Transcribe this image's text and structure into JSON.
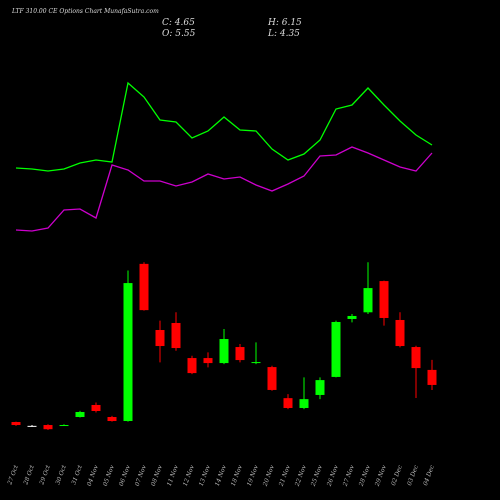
{
  "chart_data": {
    "type": "candlestick",
    "title": "LTF 310.00 CE Options Chart MunafaSutra.com",
    "close_label": "C: 4.65",
    "high_label": "H: 6.15",
    "open_label": "O: 5.55",
    "low_label": "L: 4.35",
    "categories": [
      "27 Oct",
      "28 Oct",
      "29 Oct",
      "30 Oct",
      "31 Oct",
      "04 Nov",
      "05 Nov",
      "06 Nov",
      "07 Nov",
      "08 Nov",
      "11 Nov",
      "12 Nov",
      "13 Nov",
      "14 Nov",
      "18 Nov",
      "19 Nov",
      "20 Nov",
      "21 Nov",
      "22 Nov",
      "25 Nov",
      "26 Nov",
      "27 Nov",
      "28 Nov",
      "29 Nov",
      "02 Dec",
      "03 Dec",
      "04 Dec"
    ],
    "open": [
      2.43,
      2.2,
      2.25,
      2.2,
      2.73,
      3.45,
      2.73,
      2.49,
      11.9,
      7.94,
      8.36,
      6.26,
      6.26,
      5.96,
      6.92,
      6.0,
      5.72,
      3.86,
      3.27,
      4.05,
      5.13,
      8.6,
      9.0,
      10.87,
      8.54,
      6.92,
      5.55
    ],
    "high": [
      2.45,
      2.25,
      2.3,
      2.3,
      3.1,
      3.6,
      2.8,
      11.5,
      12.0,
      8.5,
      9.0,
      6.4,
      6.6,
      8.0,
      7.1,
      7.2,
      5.8,
      4.1,
      5.1,
      5.1,
      8.5,
      8.9,
      12.0,
      10.9,
      9.0,
      7.0,
      6.15
    ],
    "low": [
      2.2,
      2.15,
      1.95,
      2.2,
      2.7,
      3.0,
      2.45,
      2.45,
      9.1,
      6.0,
      6.7,
      5.3,
      5.7,
      5.9,
      6.0,
      5.9,
      4.3,
      3.2,
      3.2,
      3.8,
      5.1,
      8.4,
      8.9,
      8.2,
      6.9,
      3.87,
      4.35
    ],
    "close": [
      2.25,
      2.2,
      2.0,
      2.25,
      3.03,
      3.09,
      2.49,
      10.75,
      9.13,
      6.98,
      6.86,
      5.36,
      5.96,
      7.4,
      6.14,
      6.02,
      4.35,
      3.27,
      3.8,
      4.94,
      8.42,
      8.78,
      10.45,
      8.66,
      6.98,
      5.66,
      4.65
    ],
    "up_color": "#00ff00",
    "down_color": "#ff0000",
    "flat_color": "#ffffff",
    "lines": [
      {
        "color": "#00ff00",
        "values": [
          9.2,
          9.1,
          8.9,
          9.1,
          9.7,
          10,
          9.8,
          17.7,
          16.3,
          14,
          13.8,
          12.2,
          12.9,
          14.3,
          13,
          12.9,
          11.1,
          10,
          10.6,
          12,
          15.1,
          15.5,
          17.2,
          15.5,
          13.9,
          12.5,
          11.5
        ]
      },
      {
        "color": "#cc00cc",
        "values": [
          3,
          2.9,
          3.2,
          5,
          5.1,
          4.2,
          9.5,
          9,
          7.9,
          7.9,
          7.4,
          7.8,
          8.6,
          8.1,
          8.3,
          7.5,
          6.9,
          7.6,
          8.4,
          10.4,
          10.5,
          11.3,
          10.7,
          10,
          9.3,
          8.9,
          10.7
        ]
      }
    ]
  }
}
